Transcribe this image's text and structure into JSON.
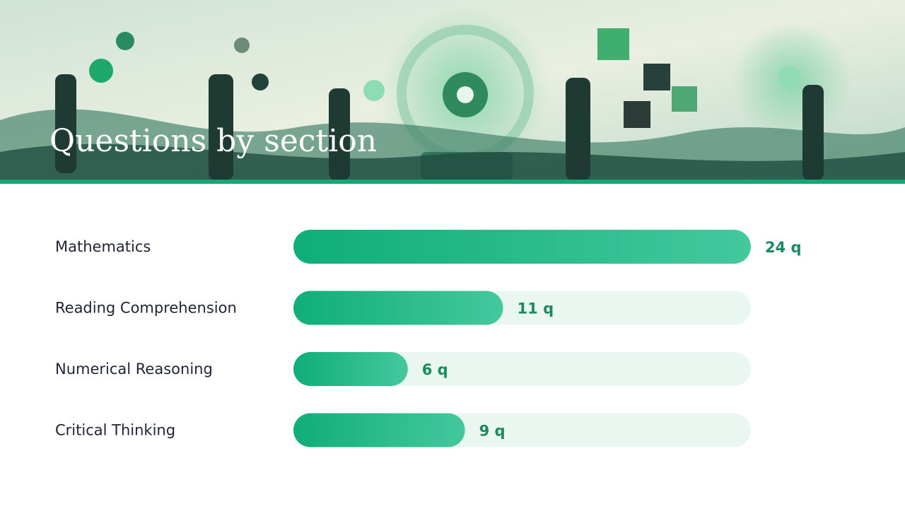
{
  "chart_data": {
    "type": "bar",
    "orientation": "horizontal",
    "title": "Questions by section",
    "categories": [
      "Mathematics",
      "Reading Comprehension",
      "Numerical Reasoning",
      "Critical Thinking"
    ],
    "values": [
      24,
      11,
      6,
      9
    ],
    "value_labels": [
      "24 q",
      "11 q",
      "6 q",
      "9 q"
    ],
    "color": "#12b07c",
    "track_color": "#eaf7f1",
    "xlim": [
      0,
      24
    ]
  }
}
